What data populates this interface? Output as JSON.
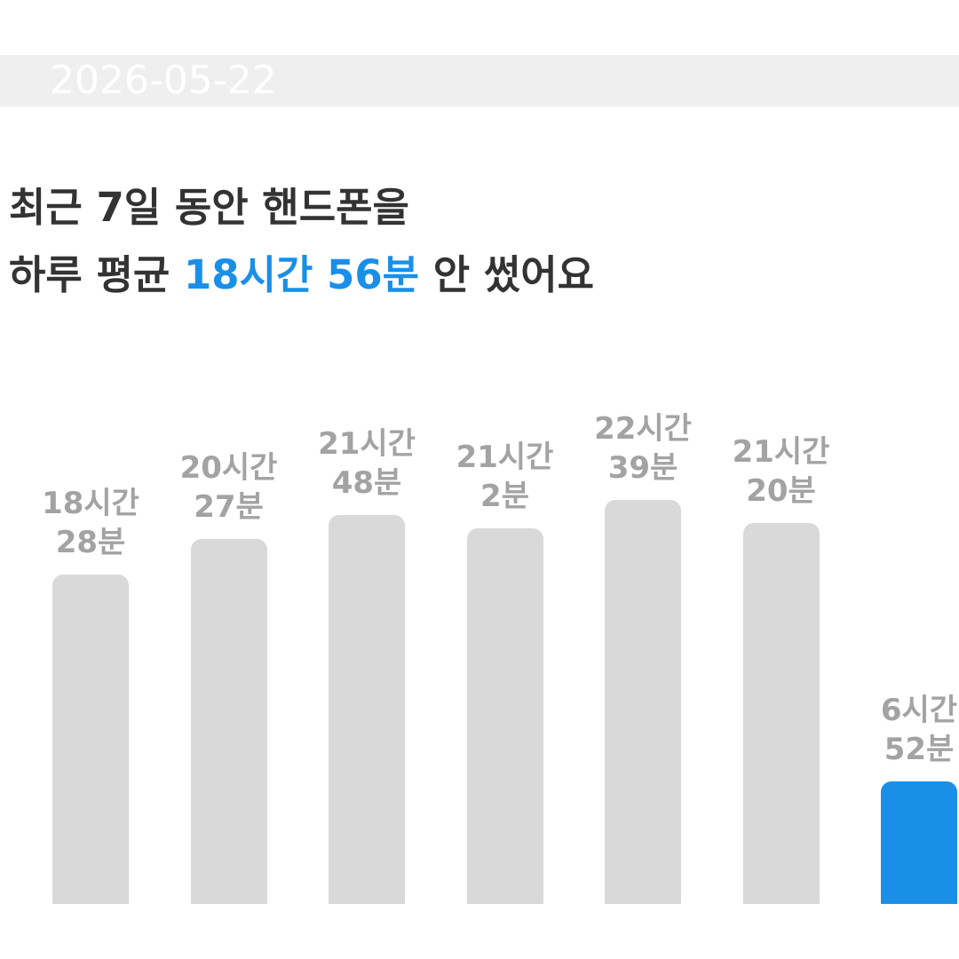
{
  "header": {
    "date": "2026-05-22"
  },
  "headline": {
    "line1": "최근 7일 동안 핸드폰을",
    "line2_prefix": "하루 평균",
    "line2_highlight": "18시간 56분",
    "line2_suffix": "안 썼어요"
  },
  "chart_data": {
    "type": "bar",
    "values": [
      1108,
      1227,
      1308,
      1262,
      1359,
      1280,
      412
    ],
    "value_labels": [
      "18시간\n28분",
      "20시간\n27분",
      "21시간\n48분",
      "21시간\n2분",
      "22시간\n39분",
      "21시간\n20분",
      "6시간\n52분"
    ],
    "colors": [
      "#d9d9d9",
      "#d9d9d9",
      "#d9d9d9",
      "#d9d9d9",
      "#d9d9d9",
      "#d9d9d9",
      "#1a8fe8"
    ]
  }
}
